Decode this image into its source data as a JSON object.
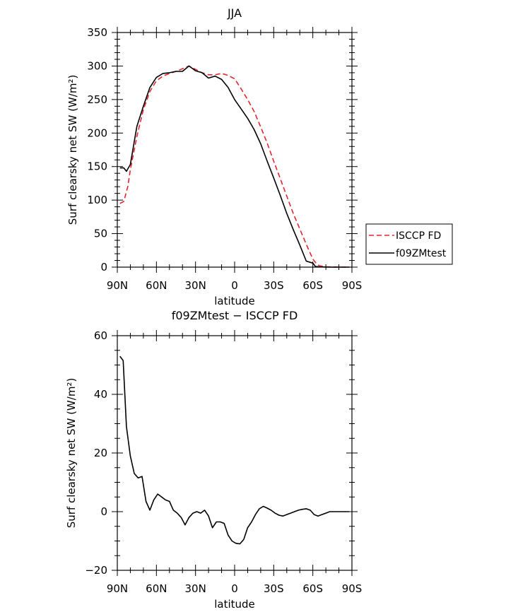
{
  "chart_data": [
    {
      "type": "line",
      "title": "JJA",
      "xlabel": "latitude",
      "ylabel": "Surf clearsky net SW (W/m²)",
      "xlim": [
        90,
        -90
      ],
      "ylim": [
        0,
        350
      ],
      "x_ticks": [
        90,
        60,
        30,
        0,
        -30,
        -60,
        -90
      ],
      "x_tick_labels": [
        "90N",
        "60N",
        "30N",
        "0",
        "30S",
        "60S",
        "90S"
      ],
      "y_ticks": [
        0,
        50,
        100,
        150,
        200,
        250,
        300,
        350
      ],
      "y_tick_labels": [
        "0",
        "50",
        "100",
        "150",
        "200",
        "250",
        "300",
        "350"
      ],
      "legend_position": "right",
      "series": [
        {
          "name": "ISCCP FD",
          "color": "#e8242c",
          "style": "dashed",
          "x": [
            88,
            85,
            82,
            80,
            75,
            70,
            65,
            60,
            55,
            50,
            45,
            40,
            35,
            30,
            25,
            20,
            15,
            10,
            5,
            0,
            -5,
            -10,
            -15,
            -20,
            -25,
            -30,
            -35,
            -40,
            -45,
            -50,
            -55,
            -60,
            -62,
            -65,
            -70,
            -75,
            -80,
            -85,
            -88
          ],
          "y": [
            95,
            98,
            120,
            145,
            195,
            235,
            262,
            278,
            285,
            289,
            292,
            296,
            300,
            295,
            290,
            287,
            287,
            289,
            286,
            281,
            266,
            250,
            232,
            209,
            185,
            158,
            132,
            106,
            80,
            57,
            34,
            12,
            7,
            2,
            0.5,
            0.2,
            0,
            0,
            0
          ]
        },
        {
          "name": "f09ZMtest",
          "color": "#000000",
          "style": "solid",
          "x": [
            88,
            85,
            83,
            80,
            75,
            70,
            65,
            60,
            55,
            50,
            45,
            40,
            35,
            30,
            25,
            20,
            15,
            10,
            5,
            0,
            -5,
            -10,
            -15,
            -20,
            -25,
            -30,
            -35,
            -40,
            -45,
            -50,
            -55,
            -60,
            -62,
            -65,
            -70,
            -75,
            -80,
            -85,
            -88
          ],
          "y": [
            148,
            148,
            143,
            153,
            210,
            240,
            268,
            283,
            289,
            290,
            292,
            292,
            300,
            293,
            290,
            282,
            285,
            280,
            268,
            250,
            236,
            222,
            205,
            184,
            158,
            133,
            107,
            80,
            56,
            33,
            9,
            6,
            1,
            0.5,
            0.2,
            0,
            0,
            0,
            0
          ]
        }
      ]
    },
    {
      "type": "line",
      "title": "f09ZMtest − ISCCP FD",
      "xlabel": "latitude",
      "ylabel": "Surf clearsky net SW (W/m²)",
      "xlim": [
        90,
        -90
      ],
      "ylim": [
        -20,
        60
      ],
      "x_ticks": [
        90,
        60,
        30,
        0,
        -30,
        -60,
        -90
      ],
      "x_tick_labels": [
        "90N",
        "60N",
        "30N",
        "0",
        "30S",
        "60S",
        "90S"
      ],
      "y_ticks": [
        -20,
        0,
        20,
        40,
        60
      ],
      "y_tick_labels": [
        "−20",
        "0",
        "20",
        "40",
        "60"
      ],
      "series": [
        {
          "color": "#000000",
          "style": "solid",
          "x": [
            88,
            85.5,
            83,
            80,
            77,
            74,
            71,
            68,
            65,
            62,
            59,
            56,
            53,
            50,
            47,
            44,
            41,
            38,
            35,
            32,
            29,
            26,
            23,
            20,
            17,
            14,
            11,
            8,
            5,
            2,
            -1,
            -4,
            -7,
            -10,
            -13,
            -16,
            -19,
            -22,
            -25,
            -28,
            -31,
            -34,
            -37,
            -40,
            -43,
            -46,
            -49,
            -52,
            -55,
            -58,
            -61,
            -64,
            -67,
            -70,
            -73,
            -76,
            -79,
            -82,
            -85,
            -88
          ],
          "y": [
            53,
            51.5,
            29,
            19,
            13,
            11.5,
            12,
            3.5,
            0.5,
            4,
            6,
            5,
            4,
            3.5,
            0.5,
            -0.5,
            -2,
            -4.5,
            -2,
            -0.5,
            0,
            -0.5,
            0.5,
            -1.5,
            -5.5,
            -3.5,
            -3.5,
            -4,
            -8,
            -10,
            -10.8,
            -11,
            -9.5,
            -5.5,
            -3.5,
            -1,
            1,
            1.8,
            1.2,
            0.5,
            -0.5,
            -1.2,
            -1.5,
            -1,
            -0.5,
            0,
            0.5,
            0.8,
            1,
            0.5,
            -1,
            -1.5,
            -1,
            -0.5,
            0,
            0,
            0,
            0,
            0,
            0
          ]
        }
      ]
    }
  ]
}
